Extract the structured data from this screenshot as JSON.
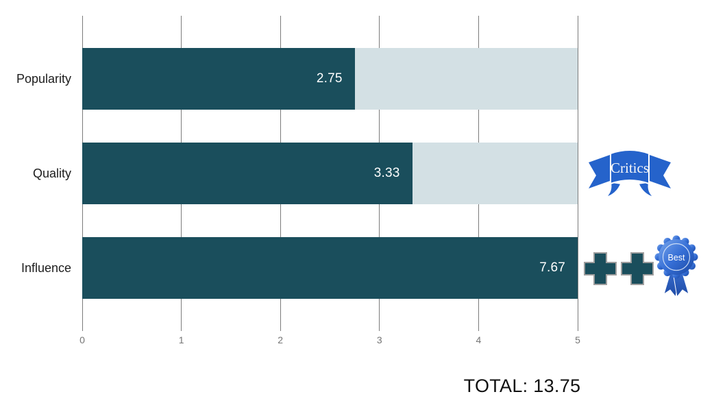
{
  "chart_data": {
    "type": "bar",
    "orientation": "horizontal",
    "title": "",
    "categories": [
      "Popularity",
      "Quality",
      "Influence"
    ],
    "values": [
      2.75,
      3.33,
      7.67
    ],
    "value_labels": [
      "2.75",
      "3.33",
      "7.67"
    ],
    "xlim": [
      0,
      5
    ],
    "x_ticks": [
      "0",
      "1",
      "2",
      "3",
      "4",
      "5"
    ],
    "grid": true,
    "legend": "none",
    "bar_color": "#1a4e5c",
    "track_color": "#d3e0e4",
    "total_label": "TOTAL: 13.75",
    "annotations": [
      {
        "category": "Quality",
        "type": "ribbon-badge",
        "text": "Critics"
      },
      {
        "category": "Influence",
        "type": "icon-row",
        "icons": [
          "plus",
          "plus",
          "rosette"
        ],
        "rosette_text": "Best"
      }
    ]
  },
  "colors": {
    "bar": "#1a4e5c",
    "track": "#d3e0e4",
    "gridline": "#7b7b7b",
    "tick_text": "#757575",
    "ribbon_blue": "#2563cb",
    "rosette_light": "#7aa7ec",
    "rosette_mid": "#366fd6",
    "rosette_dark": "#1b49a4",
    "plus_fill": "#1a4e5c",
    "plus_stroke": "#9e9e9e"
  },
  "badges": {
    "critics_label": "Critics",
    "best_label": "Best"
  }
}
